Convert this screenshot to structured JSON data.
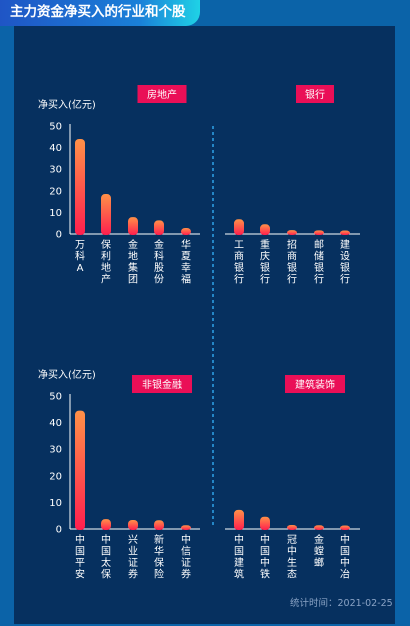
{
  "title": "主力资金净买入的行业和个股",
  "footer": "统计时间：2021-02-25",
  "colors": {
    "panel_bg": "#06305f",
    "page_bg": "#0b63a8",
    "bar_top": "#ff9148",
    "bar_bottom": "#ff1f4e",
    "tag_bg": "#ea0f57",
    "divider": "#2c9be0",
    "axis": "#ffffff"
  },
  "chart_data": [
    {
      "type": "bar",
      "ylabel": "净买入(亿元)",
      "ylim": [
        0,
        50
      ],
      "yticks": [
        0,
        10,
        20,
        30,
        40,
        50
      ],
      "groups": [
        {
          "name": "房地产",
          "categories": [
            "万科A",
            "保利地产",
            "金地集团",
            "金科股份",
            "华夏幸福"
          ],
          "values": [
            44,
            18.5,
            7.8,
            6.3,
            2.8
          ]
        },
        {
          "name": "银行",
          "categories": [
            "工商银行",
            "重庆银行",
            "招商银行",
            "邮储银行",
            "建设银行"
          ],
          "values": [
            6.8,
            4.5,
            1.8,
            1.7,
            1.6
          ]
        }
      ]
    },
    {
      "type": "bar",
      "ylabel": "净买入(亿元)",
      "ylim": [
        0,
        50
      ],
      "yticks": [
        0,
        10,
        20,
        30,
        40,
        50
      ],
      "groups": [
        {
          "name": "非银金融",
          "categories": [
            "中国平安",
            "中国太保",
            "兴业证券",
            "新华保险",
            "中信证券"
          ],
          "values": [
            44.5,
            3.7,
            3.4,
            3.3,
            1.4
          ]
        },
        {
          "name": "建筑装饰",
          "categories": [
            "中国建筑",
            "中国中铁",
            "冠中生态",
            "金螳螂",
            "中国中冶"
          ],
          "values": [
            7.2,
            4.6,
            1.5,
            1.4,
            1.3
          ]
        }
      ]
    }
  ]
}
